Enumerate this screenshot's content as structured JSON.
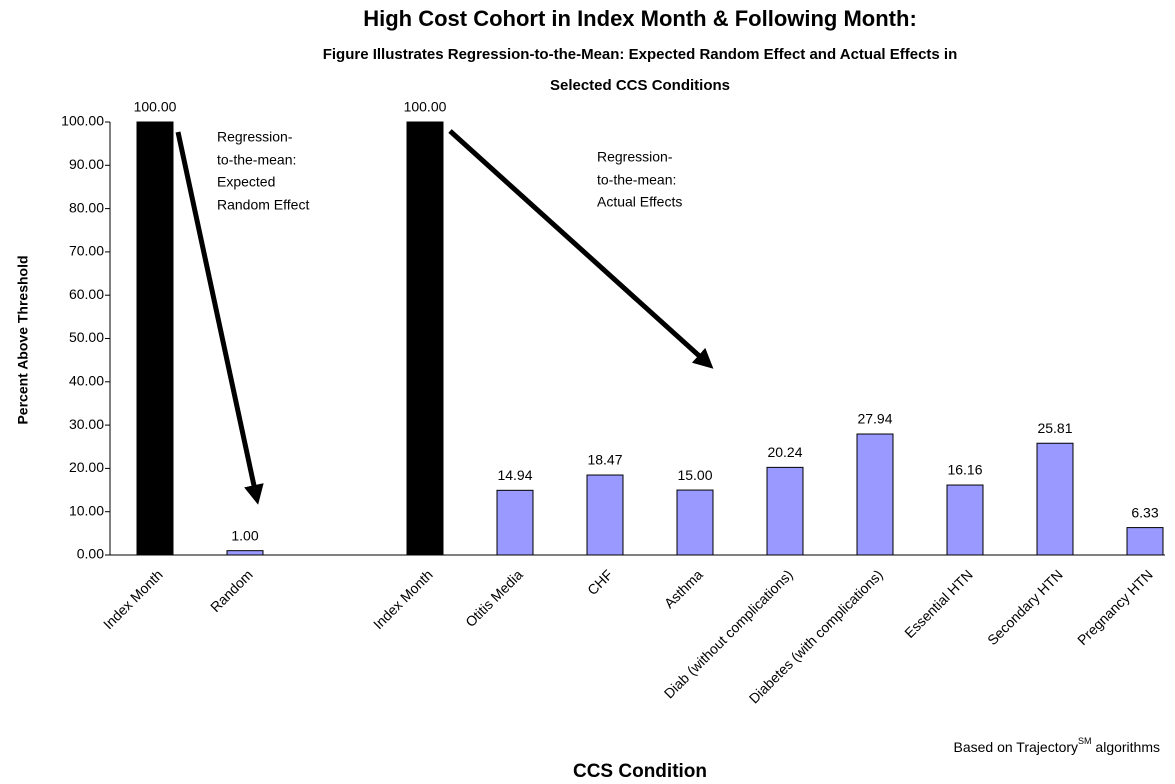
{
  "chart_data": {
    "type": "bar",
    "title": "High Cost Cohort in Index Month & Following Month:",
    "subtitle": [
      "Figure Illustrates Regression-to-the-Mean: Expected Random Effect and Actual Effects in",
      "Selected CCS Conditions"
    ],
    "x_label": "CCS Condition",
    "y_label": "Percent Above Threshold",
    "categories": [
      "Index Month",
      "Random",
      null,
      "Index Month",
      "Otitis Media",
      "CHF",
      "Asthma",
      "Diab (without complications)",
      "Diabetes (with complications)",
      "Essential HTN",
      "Secondary HTN",
      "Pregnancy HTN"
    ],
    "values": [
      100,
      1,
      null,
      100,
      14.94,
      18.47,
      15,
      20.24,
      27.94,
      16.16,
      25.81,
      6.33
    ],
    "value_labels": [
      "100.00",
      "1.00",
      null,
      "100.00",
      "14.94",
      "18.47",
      "15.00",
      "20.24",
      "27.94",
      "16.16",
      "25.81",
      "6.33"
    ],
    "colors": [
      "#000000",
      "#9999ff",
      null,
      "#000000",
      "#9999ff",
      "#9999ff",
      "#9999ff",
      "#9999ff",
      "#9999ff",
      "#9999ff",
      "#9999ff",
      "#9999ff"
    ],
    "ylim": [
      0,
      100
    ],
    "yticks": [
      {
        "value": 0,
        "label": "0.00"
      },
      {
        "value": 10,
        "label": "10.00"
      },
      {
        "value": 20,
        "label": "20.00"
      },
      {
        "value": 30,
        "label": "30.00"
      },
      {
        "value": 40,
        "label": "40.00"
      },
      {
        "value": 50,
        "label": "50.00"
      },
      {
        "value": 60,
        "label": "60.00"
      },
      {
        "value": 70,
        "label": "70.00"
      },
      {
        "value": 80,
        "label": "80.00"
      },
      {
        "value": 90,
        "label": "90.00"
      },
      {
        "value": 100,
        "label": "100.00"
      }
    ],
    "annotations": [
      [
        "Regression-",
        "to-the-mean:",
        "Expected",
        "Random Effect"
      ],
      [
        "Regression-",
        "to-the-mean:",
        "Actual Effects"
      ]
    ],
    "note": {
      "text": "Based on Trajectory",
      "sup": "SM",
      "after": " algorithms"
    }
  }
}
